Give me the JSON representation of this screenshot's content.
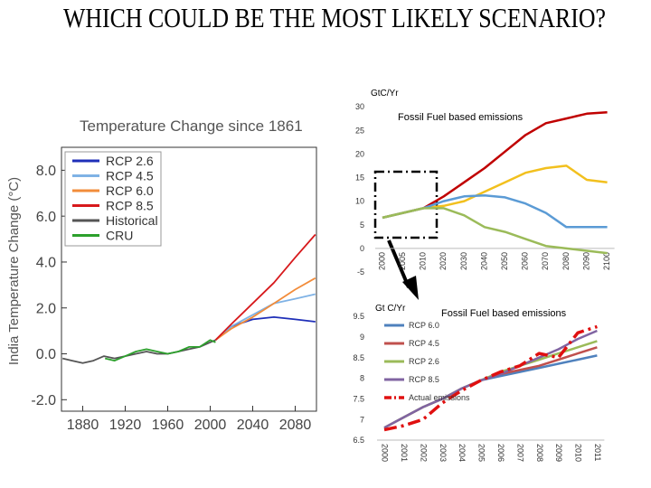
{
  "slide_title": "WHICH COULD BE THE MOST LIKELY SCENARIO?",
  "chart_data": [
    {
      "type": "line",
      "title": "Temperature Change since 1861",
      "ylabel": "India Temperature Change (°C)",
      "xlim": [
        1860,
        2100
      ],
      "xticks": [
        1880,
        1920,
        1960,
        2000,
        2040,
        2080
      ],
      "ylim": [
        -2.5,
        9
      ],
      "yticks": [
        {
          "value": -2,
          "label": "-2.0"
        },
        {
          "value": 0,
          "label": "0.0"
        },
        {
          "value": 2,
          "label": "2.0"
        },
        {
          "value": 4,
          "label": "4.0"
        },
        {
          "value": 6,
          "label": "6.0"
        },
        {
          "value": 8,
          "label": "8.0"
        }
      ],
      "legend": "upper left",
      "series": [
        {
          "name": "RCP 2.6",
          "color": "#1f2fb8",
          "x": [
            2005,
            2020,
            2040,
            2060,
            2080,
            2099
          ],
          "values": [
            0.6,
            1.2,
            1.5,
            1.6,
            1.5,
            1.4
          ]
        },
        {
          "name": "RCP 4.5",
          "color": "#7fb2e5",
          "x": [
            2005,
            2020,
            2040,
            2060,
            2080,
            2099
          ],
          "values": [
            0.6,
            1.2,
            1.7,
            2.2,
            2.4,
            2.6
          ]
        },
        {
          "name": "RCP 6.0",
          "color": "#f28c3a",
          "x": [
            2005,
            2020,
            2040,
            2060,
            2080,
            2099
          ],
          "values": [
            0.6,
            1.1,
            1.6,
            2.2,
            2.8,
            3.3
          ]
        },
        {
          "name": "RCP 8.5",
          "color": "#d7191c",
          "x": [
            2005,
            2020,
            2040,
            2060,
            2080,
            2099
          ],
          "values": [
            0.6,
            1.3,
            2.2,
            3.1,
            4.2,
            5.2
          ]
        },
        {
          "name": "Historical",
          "color": "#555555",
          "x": [
            1861,
            1870,
            1880,
            1890,
            1900,
            1910,
            1920,
            1930,
            1940,
            1950,
            1960,
            1970,
            1980,
            1990,
            2000,
            2005
          ],
          "values": [
            -0.2,
            -0.3,
            -0.4,
            -0.3,
            -0.1,
            -0.2,
            -0.1,
            0,
            0.1,
            0,
            0,
            0.1,
            0.2,
            0.3,
            0.5,
            0.6
          ]
        },
        {
          "name": "CRU",
          "color": "#2ca02c",
          "x": [
            1901,
            1910,
            1920,
            1930,
            1940,
            1950,
            1960,
            1970,
            1980,
            1990,
            2000,
            2005
          ],
          "values": [
            -0.2,
            -0.3,
            -0.1,
            0.1,
            0.2,
            0.1,
            0,
            0.1,
            0.3,
            0.3,
            0.6,
            0.5
          ]
        }
      ]
    },
    {
      "type": "line",
      "title": "Fossil Fuel based emissions",
      "ylabel": "GtC/Yr",
      "categories": [
        "2000",
        "2005",
        "2010",
        "2020",
        "2030",
        "2040",
        "2050",
        "2060",
        "2070",
        "2080",
        "2090",
        "2100"
      ],
      "ylim": [
        -5,
        30
      ],
      "yticks": [
        -5,
        0,
        5,
        10,
        15,
        20,
        25,
        30
      ],
      "series": [
        {
          "color": "#c00000",
          "values": [
            6.5,
            7.5,
            8.5,
            11,
            14,
            17,
            20.5,
            24,
            26.5,
            27.5,
            28.5,
            28.8
          ]
        },
        {
          "color": "#f2c01e",
          "values": [
            6.5,
            7.5,
            8.5,
            9,
            10,
            12,
            14,
            16,
            17,
            17.5,
            14.5,
            14
          ]
        },
        {
          "color": "#5b9bd5",
          "values": [
            6.5,
            7.5,
            8.5,
            10,
            11,
            11.2,
            10.8,
            9.5,
            7.5,
            4.5,
            4.5,
            4.5
          ]
        },
        {
          "color": "#9bbb59",
          "values": [
            6.5,
            7.5,
            8.5,
            8.5,
            7,
            4.5,
            3.5,
            2,
            0.5,
            0,
            -0.5,
            -1
          ]
        }
      ]
    },
    {
      "type": "line",
      "title": "Fossil Fuel based emissions",
      "ylabel": "Gt C/Yr",
      "categories": [
        "2000",
        "2001",
        "2002",
        "2003",
        "2004",
        "2005",
        "2006",
        "2007",
        "2008",
        "2009",
        "2010",
        "2011"
      ],
      "ylim": [
        6.5,
        9.5
      ],
      "yticks": [
        6.5,
        7,
        7.5,
        8,
        8.5,
        9,
        9.5
      ],
      "legend": "upper left",
      "series": [
        {
          "name": "RCP 6.0",
          "color": "#4f81bd",
          "values": [
            6.8,
            7.05,
            7.3,
            7.5,
            7.75,
            7.95,
            8.05,
            8.15,
            8.25,
            8.35,
            8.45,
            8.55
          ]
        },
        {
          "name": "RCP 4.5",
          "color": "#c0504d",
          "values": [
            6.8,
            7.05,
            7.3,
            7.5,
            7.75,
            7.95,
            8.1,
            8.2,
            8.3,
            8.45,
            8.6,
            8.75
          ]
        },
        {
          "name": "RCP 2.6",
          "color": "#9bbb59",
          "values": [
            6.8,
            7.05,
            7.3,
            7.5,
            7.75,
            7.95,
            8.15,
            8.3,
            8.45,
            8.6,
            8.75,
            8.9
          ]
        },
        {
          "name": "RCP 8.5",
          "color": "#8064a2",
          "values": [
            6.8,
            7.05,
            7.3,
            7.5,
            7.75,
            7.95,
            8.1,
            8.3,
            8.5,
            8.7,
            8.95,
            9.15
          ]
        },
        {
          "name": "Actual emissions",
          "color": "#e01010",
          "line_style": "dash-dot",
          "values": [
            6.75,
            6.85,
            7.0,
            7.4,
            7.7,
            7.95,
            8.15,
            8.3,
            8.6,
            8.5,
            9.1,
            9.25
          ]
        }
      ]
    }
  ]
}
